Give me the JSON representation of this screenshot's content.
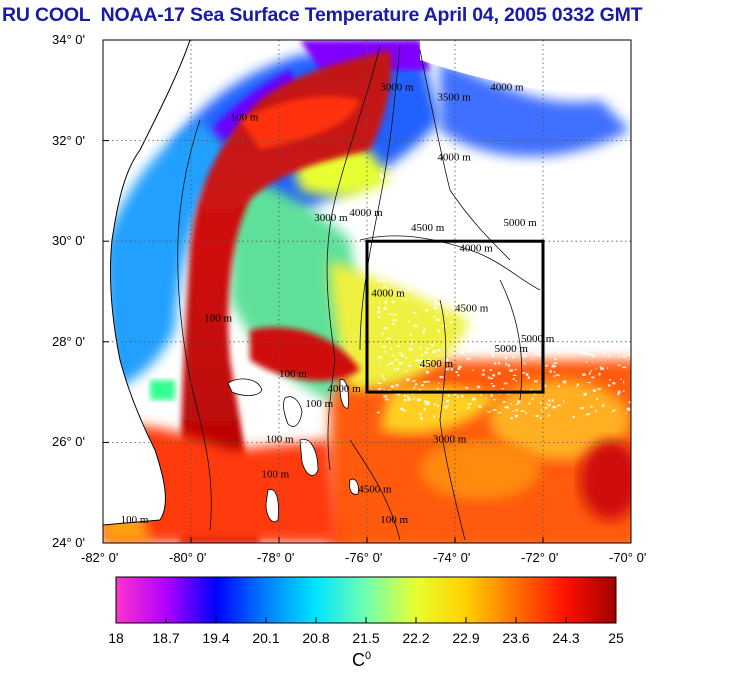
{
  "title": "RU COOL  NOAA-17 Sea Surface Temperature April 04, 2005 0332 GMT",
  "map": {
    "lat_ticks": [
      "34° 0'",
      "32° 0'",
      "30° 0'",
      "28° 0'",
      "26° 0'",
      "24° 0'"
    ],
    "lon_ticks": [
      "-82° 0'",
      "-80° 0'",
      "-78° 0'",
      "-76° 0'",
      "-74° 0'",
      "-72° 0'",
      "-70° 0'"
    ],
    "lat_range": [
      24,
      34
    ],
    "lon_range": [
      -82,
      -70
    ],
    "box": {
      "lon": [
        -76,
        -72
      ],
      "lat": [
        27,
        30
      ]
    },
    "contour_labels": [
      {
        "text": "3000 m",
        "lon": -75.7,
        "lat": 33.0
      },
      {
        "text": "3500 m",
        "lon": -74.4,
        "lat": 32.8
      },
      {
        "text": "4000 m",
        "lon": -73.2,
        "lat": 33.0
      },
      {
        "text": "100 m",
        "lon": -79.1,
        "lat": 32.4
      },
      {
        "text": "4000 m",
        "lon": -74.4,
        "lat": 31.6
      },
      {
        "text": "3000 m",
        "lon": -77.2,
        "lat": 30.4
      },
      {
        "text": "4000 m",
        "lon": -76.4,
        "lat": 30.5
      },
      {
        "text": "4500 m",
        "lon": -75.0,
        "lat": 30.2
      },
      {
        "text": "5000 m",
        "lon": -72.9,
        "lat": 30.3
      },
      {
        "text": "4000 m",
        "lon": -73.9,
        "lat": 29.8
      },
      {
        "text": "100 m",
        "lon": -79.7,
        "lat": 28.4
      },
      {
        "text": "4000 m",
        "lon": -75.9,
        "lat": 28.9
      },
      {
        "text": "4500 m",
        "lon": -74.0,
        "lat": 28.6
      },
      {
        "text": "5000 m",
        "lon": -72.5,
        "lat": 28.0
      },
      {
        "text": "5000 m",
        "lon": -73.1,
        "lat": 27.8
      },
      {
        "text": "100 m",
        "lon": -78.0,
        "lat": 27.3
      },
      {
        "text": "4500 m",
        "lon": -74.8,
        "lat": 27.5
      },
      {
        "text": "4000 m",
        "lon": -76.9,
        "lat": 27.0
      },
      {
        "text": "100 m",
        "lon": -77.4,
        "lat": 26.7
      },
      {
        "text": "100 m",
        "lon": -78.3,
        "lat": 26.0
      },
      {
        "text": "100 m",
        "lon": -78.4,
        "lat": 25.3
      },
      {
        "text": "3000 m",
        "lon": -74.5,
        "lat": 26.0
      },
      {
        "text": "4500 m",
        "lon": -76.2,
        "lat": 25.0
      },
      {
        "text": "100 m",
        "lon": -81.6,
        "lat": 24.4
      },
      {
        "text": "100 m",
        "lon": -75.7,
        "lat": 24.4
      }
    ]
  },
  "colorbar": {
    "min": 18,
    "max": 25,
    "ticks": [
      "18",
      "18.7",
      "19.4",
      "20.1",
      "20.8",
      "21.5",
      "22.2",
      "22.9",
      "23.6",
      "24.3",
      "25"
    ],
    "units": "C",
    "units_sup": "0",
    "stops": [
      "#ff33cc",
      "#b000ff",
      "#0000ff",
      "#0080ff",
      "#00e5ff",
      "#70ffb0",
      "#e8ff30",
      "#ffd000",
      "#ff7000",
      "#ff1000",
      "#a00000"
    ]
  }
}
